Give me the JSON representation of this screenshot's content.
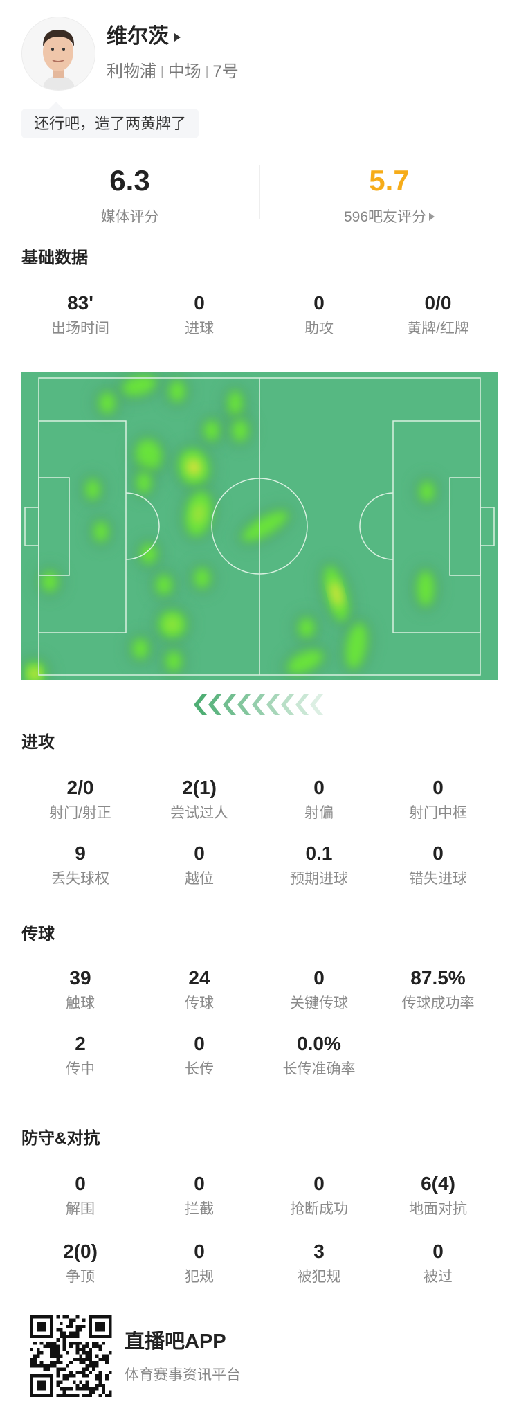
{
  "player": {
    "name": "维尔茨",
    "team": "利物浦",
    "position": "中场",
    "number": "7号",
    "comment": "还行吧，造了两黄牌了"
  },
  "ratings": {
    "media": {
      "value": "6.3",
      "label": "媒体评分",
      "color": "#222222"
    },
    "fans": {
      "value": "5.7",
      "label": "596吧友评分",
      "color": "#f6ac19"
    }
  },
  "sections": [
    {
      "title": "基础数据",
      "rows": [
        [
          {
            "value": "83'",
            "label": "出场时间"
          },
          {
            "value": "0",
            "label": "进球"
          },
          {
            "value": "0",
            "label": "助攻"
          },
          {
            "value": "0/0",
            "label": "黄牌/红牌"
          }
        ]
      ]
    },
    {
      "title": "进攻",
      "rows": [
        [
          {
            "value": "2/0",
            "label": "射门/射正"
          },
          {
            "value": "2(1)",
            "label": "尝试过人"
          },
          {
            "value": "0",
            "label": "射偏"
          },
          {
            "value": "0",
            "label": "射门中框"
          }
        ],
        [
          {
            "value": "9",
            "label": "丢失球权"
          },
          {
            "value": "0",
            "label": "越位"
          },
          {
            "value": "0.1",
            "label": "预期进球"
          },
          {
            "value": "0",
            "label": "错失进球"
          }
        ]
      ]
    },
    {
      "title": "传球",
      "rows": [
        [
          {
            "value": "39",
            "label": "触球"
          },
          {
            "value": "24",
            "label": "传球"
          },
          {
            "value": "0",
            "label": "关键传球"
          },
          {
            "value": "87.5%",
            "label": "传球成功率"
          }
        ],
        [
          {
            "value": "2",
            "label": "传中"
          },
          {
            "value": "0",
            "label": "长传"
          },
          {
            "value": "0.0%",
            "label": "长传准确率"
          }
        ]
      ]
    },
    {
      "title": "防守&对抗",
      "rows": [
        [
          {
            "value": "0",
            "label": "解围"
          },
          {
            "value": "0",
            "label": "拦截"
          },
          {
            "value": "0",
            "label": "抢断成功"
          },
          {
            "value": "6(4)",
            "label": "地面对抗"
          }
        ],
        [
          {
            "value": "2(0)",
            "label": "争顶"
          },
          {
            "value": "0",
            "label": "犯规"
          },
          {
            "value": "3",
            "label": "被犯规"
          },
          {
            "value": "0",
            "label": "被过"
          }
        ]
      ]
    }
  ],
  "heatmap": {
    "pitch_color": "#56b882",
    "line_color": "#d8f0e0",
    "attack_direction": "left"
  },
  "footer": {
    "app_name": "直播吧APP",
    "tagline": "体育赛事资讯平台"
  }
}
